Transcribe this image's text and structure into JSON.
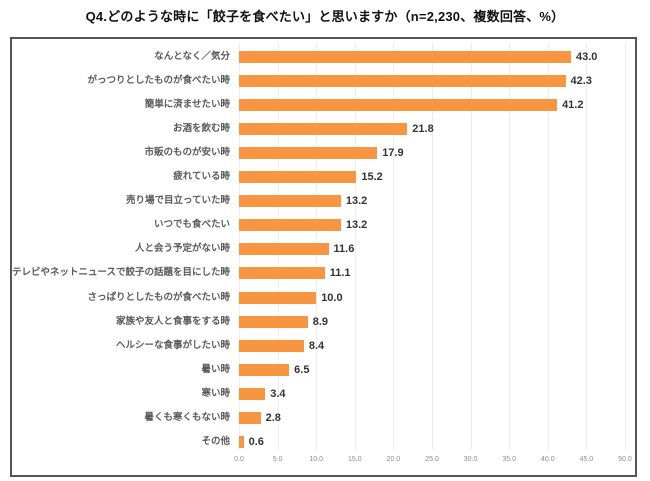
{
  "chart_data": {
    "type": "bar",
    "orientation": "horizontal",
    "title": "Q4.どのような時に「餃子を食べたい」と思いますか（n=2,230、複数回答、%）",
    "categories": [
      "なんとなく／気分",
      "がっつりとしたものが食べたい時",
      "簡単に済ませたい時",
      "お酒を飲む時",
      "市販のものが安い時",
      "疲れている時",
      "売り場で目立っていた時",
      "いつでも食べたい",
      "人と会う予定がない時",
      "テレビやネットニュースで餃子の話題を目にした時",
      "さっぱりとしたものが食べたい時",
      "家族や友人と食事をする時",
      "ヘルシーな食事がしたい時",
      "暑い時",
      "寒い時",
      "暑くも寒くもない時",
      "その他"
    ],
    "values": [
      43.0,
      42.3,
      41.2,
      21.8,
      17.9,
      15.2,
      13.2,
      13.2,
      11.6,
      11.1,
      10.0,
      8.9,
      8.4,
      6.5,
      3.4,
      2.8,
      0.6
    ],
    "xlabel": "",
    "ylabel": "",
    "xlim": [
      0,
      50
    ],
    "xtick_labels": [
      "0.0",
      "5.0",
      "10.0",
      "15.0",
      "20.0",
      "25.0",
      "30.0",
      "35.0",
      "40.0",
      "45.0",
      "50.0"
    ],
    "grid": true,
    "legend": null,
    "colors": {
      "bar": "#F79540",
      "grid": "#ededed",
      "frame_border": "#555555",
      "category_label": "#595959",
      "value_label": "#333333",
      "tick_label": "#8c8c8c",
      "title": "#111111",
      "background": "#ffffff"
    }
  }
}
